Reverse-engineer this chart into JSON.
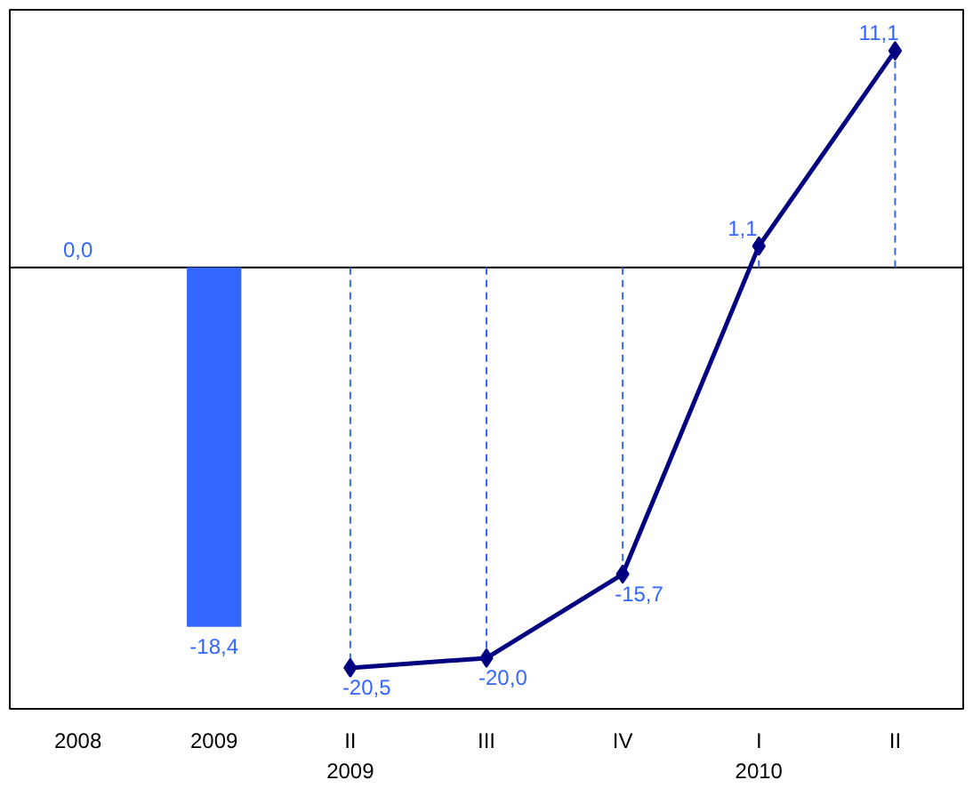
{
  "chart_data": {
    "type": "bar",
    "categories": [
      "2008",
      "2009",
      "II\n2009",
      "III",
      "IV",
      "I\n2010",
      "II"
    ],
    "series": [
      {
        "color": "#3366ff",
        "values": [
          0.0,
          -18.4,
          null,
          null,
          null,
          null,
          null
        ],
        "value_labels": [
          "0,0",
          "-18,4",
          null,
          null,
          null,
          null,
          null
        ]
      },
      {
        "type": "line",
        "color": "#000080",
        "marker": "diamond",
        "line_style": "solid",
        "values": [
          null,
          null,
          -20.5,
          -20.0,
          -15.7,
          1.1,
          11.1
        ],
        "value_labels": [
          null,
          null,
          "-20,5",
          "-20,0",
          "-15,7",
          "1,1",
          "11,1"
        ]
      }
    ],
    "ylim": [
      -22.6,
      13.2
    ],
    "grid": false,
    "tick_labels": "x",
    "data_labels": true
  }
}
